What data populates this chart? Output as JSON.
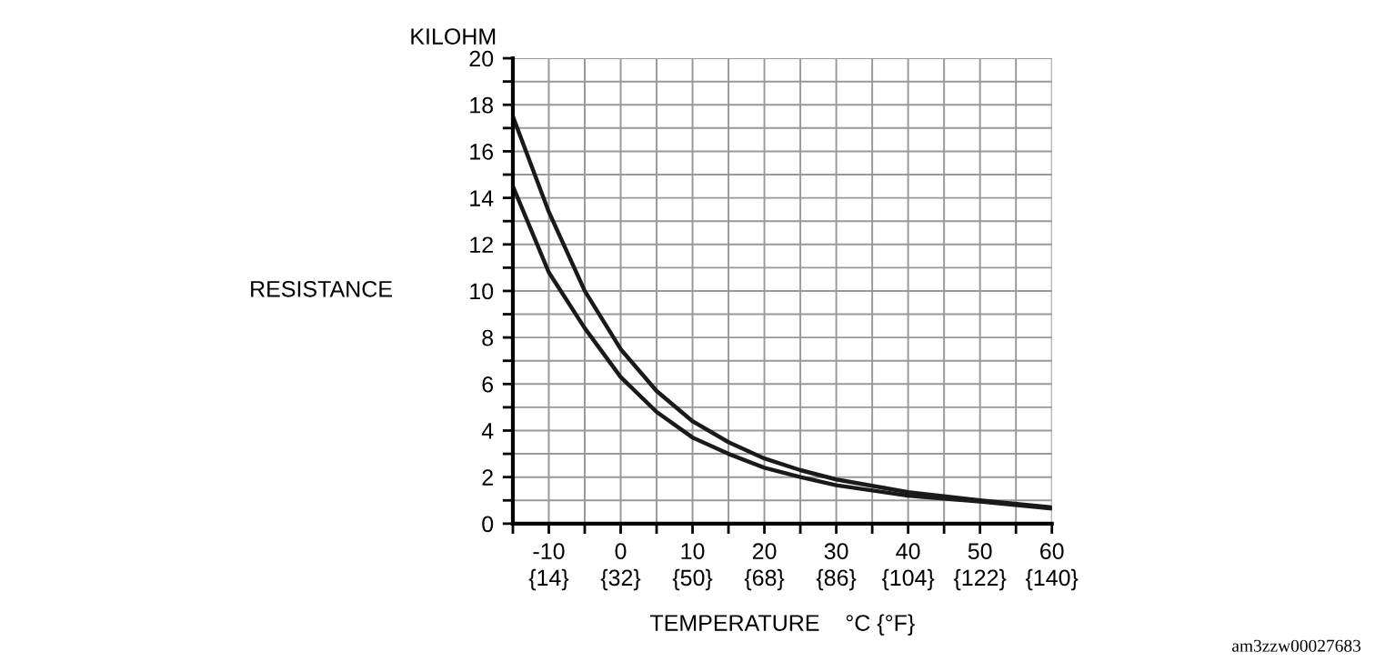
{
  "chart_data": {
    "type": "line",
    "xlabel": "TEMPERATURE    °C {°F}",
    "ylabel": "RESISTANCE",
    "annotations": [
      "KILOHM",
      "am3zzw00027683"
    ],
    "xlim": [
      -15,
      60
    ],
    "ylim": [
      0,
      20
    ],
    "xticks": [
      {
        "value": -15,
        "label": null
      },
      -10,
      {
        "value": -5,
        "label": null
      },
      0,
      {
        "value": 5,
        "label": null
      },
      10,
      {
        "value": 15,
        "label": null
      },
      20,
      {
        "value": 25,
        "label": null
      },
      30,
      {
        "value": 35,
        "label": null
      },
      40,
      {
        "value": 45,
        "label": null
      },
      50,
      {
        "value": 55,
        "label": null
      },
      60
    ],
    "x2lim": [
      5,
      140
    ],
    "x2ticks": [
      {
        "value": 14,
        "label": "{14}"
      },
      {
        "value": 32,
        "label": "{32}"
      },
      {
        "value": 50,
        "label": "{50}"
      },
      {
        "value": 68,
        "label": "{68}"
      },
      {
        "value": 86,
        "label": "{86}"
      },
      {
        "value": 104,
        "label": "{104}"
      },
      {
        "value": 122,
        "label": "{122}"
      },
      {
        "value": 140,
        "label": "{140}"
      }
    ],
    "yticks": [
      0,
      {
        "value": 1,
        "label": null
      },
      2,
      {
        "value": 3,
        "label": null
      },
      4,
      {
        "value": 5,
        "label": null
      },
      6,
      {
        "value": 7,
        "label": null
      },
      8,
      {
        "value": 9,
        "label": null
      },
      10,
      {
        "value": 11,
        "label": null
      },
      12,
      {
        "value": 13,
        "label": null
      },
      14,
      {
        "value": 15,
        "label": null
      },
      16,
      {
        "value": 17,
        "label": null
      },
      18,
      {
        "value": 19,
        "label": null
      },
      20
    ],
    "grid": true,
    "marker": "none",
    "line_style": "solid",
    "legend": false,
    "series": [
      {
        "color": "#1a1a1a",
        "x": [
          -15,
          -10,
          -5,
          0,
          5,
          10,
          15,
          20,
          25,
          30,
          40,
          50,
          60
        ],
        "values": [
          17.5,
          13.4,
          10.0,
          7.5,
          5.7,
          4.4,
          3.5,
          2.8,
          2.3,
          1.9,
          1.35,
          1.0,
          0.7
        ]
      },
      {
        "color": "#1a1a1a",
        "x": [
          -15,
          -10,
          -5,
          0,
          5,
          10,
          15,
          20,
          25,
          30,
          40,
          50,
          60
        ],
        "values": [
          14.5,
          10.8,
          8.4,
          6.3,
          4.8,
          3.7,
          3.0,
          2.4,
          2.0,
          1.65,
          1.2,
          0.95,
          0.65
        ]
      }
    ]
  }
}
